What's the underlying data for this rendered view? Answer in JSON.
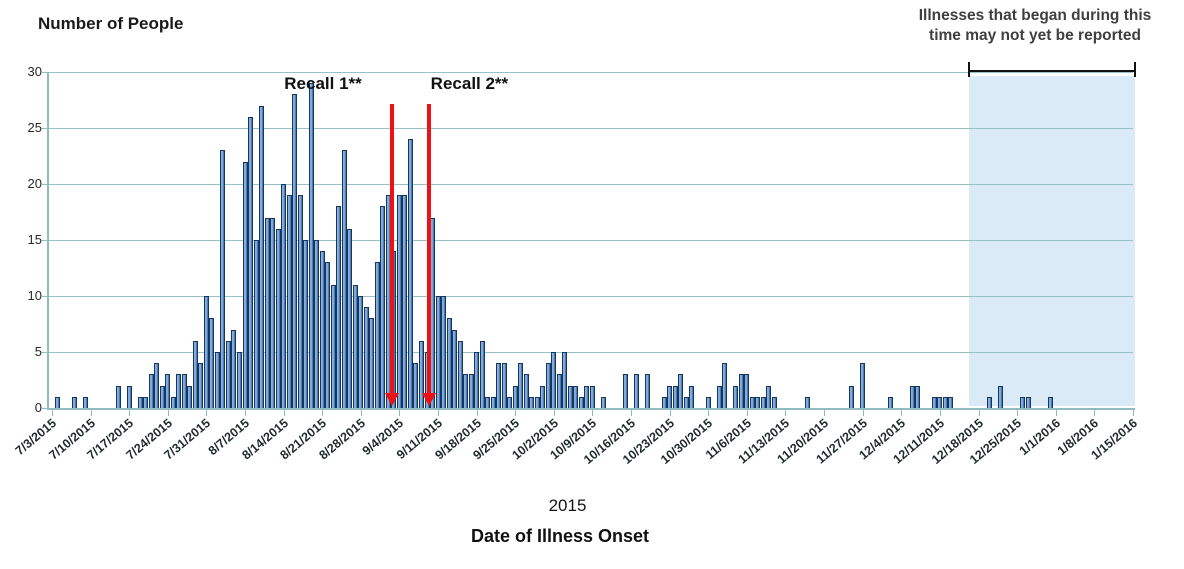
{
  "chart_data": {
    "type": "bar",
    "ylabel": "Number of People",
    "xlabel": "Date of Illness Onset",
    "x_period_label": "2015",
    "ylim": [
      0,
      30
    ],
    "yticks": [
      0,
      5,
      10,
      15,
      20,
      25,
      30
    ],
    "grid": "horizontal",
    "x_start_date": "7/3/2015",
    "days_per_tick": 7,
    "x_tick_labels": [
      "7/3/2015",
      "7/10/2015",
      "7/17/2015",
      "7/24/2015",
      "7/31/2015",
      "8/7/2015",
      "8/14/2015",
      "8/21/2015",
      "8/28/2015",
      "9/4/2015",
      "9/11/2015",
      "9/18/2015",
      "9/25/2015",
      "10/2/2015",
      "10/9/2015",
      "10/16/2015",
      "10/23/2015",
      "10/30/2015",
      "11/6/2015",
      "11/13/2015",
      "11/20/2015",
      "11/27/2015",
      "12/4/2015",
      "12/11/2015",
      "12/18/2015",
      "12/25/2015",
      "1/1/2016",
      "1/8/2016",
      "1/15/2016"
    ],
    "values": [
      0,
      1,
      0,
      0,
      1,
      0,
      1,
      0,
      0,
      0,
      0,
      0,
      2,
      0,
      2,
      0,
      1,
      1,
      3,
      4,
      2,
      3,
      1,
      3,
      3,
      2,
      6,
      4,
      10,
      8,
      5,
      23,
      6,
      7,
      5,
      22,
      26,
      15,
      27,
      17,
      17,
      16,
      20,
      19,
      28,
      19,
      15,
      29,
      15,
      14,
      13,
      11,
      18,
      23,
      16,
      11,
      10,
      9,
      8,
      13,
      18,
      19,
      14,
      19,
      19,
      24,
      4,
      6,
      5,
      17,
      10,
      10,
      8,
      7,
      6,
      3,
      3,
      5,
      6,
      1,
      1,
      4,
      4,
      1,
      2,
      4,
      3,
      1,
      1,
      2,
      4,
      5,
      3,
      5,
      2,
      2,
      1,
      2,
      2,
      0,
      1,
      0,
      0,
      0,
      3,
      0,
      3,
      0,
      3,
      0,
      0,
      1,
      2,
      2,
      3,
      1,
      2,
      0,
      0,
      1,
      0,
      2,
      4,
      0,
      2,
      3,
      3,
      1,
      1,
      1,
      2,
      1,
      0,
      0,
      0,
      0,
      0,
      1,
      0,
      0,
      0,
      0,
      0,
      0,
      0,
      2,
      0,
      4,
      0,
      0,
      0,
      0,
      1,
      0,
      0,
      0,
      2,
      2,
      0,
      0,
      1,
      1,
      1,
      1,
      0,
      0,
      0,
      0,
      0,
      0,
      1,
      0,
      2,
      0,
      0,
      0,
      1,
      1,
      0,
      0,
      0,
      1,
      0,
      0,
      0,
      0,
      0,
      0,
      0,
      0,
      0,
      0,
      0,
      0,
      0,
      0,
      0
    ],
    "annotations": {
      "recall1": {
        "label": "Recall 1**",
        "day": 61.7
      },
      "recall2": {
        "label": "Recall 2**",
        "day": 68.3
      },
      "unreported_note": {
        "line1": "Illnesses that began during this",
        "line2": "time may not yet be reported",
        "start_day": 166.2,
        "end_day": 196
      }
    },
    "colors": {
      "bar": "#4f81bd",
      "bar_border": "#17365d",
      "grid": "#95c1c7",
      "shade": "#daeaf7",
      "recall_line": "#ee1111",
      "text": "#1a1a1a",
      "note_text": "#3f3f3f"
    }
  }
}
